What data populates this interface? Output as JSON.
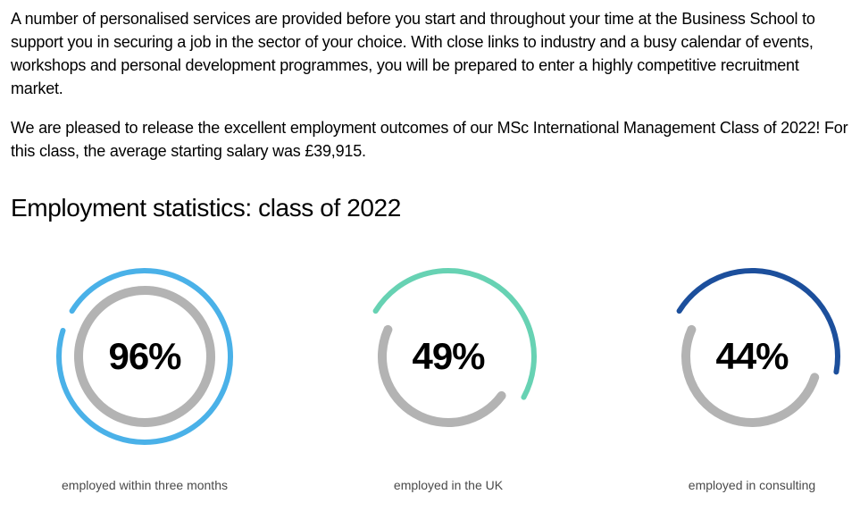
{
  "intro": {
    "p1": "A number of personalised services are provided before you start and throughout your time at the Business School to support you in securing a job in the sector of your choice. With close links to industry and a busy calendar of events, workshops and personal development programmes, you will be prepared to enter a highly competitive recruitment market.",
    "p2": "We are pleased to release the excellent employment outcomes of our MSc International Management Class of 2022! For this class, the average starting salary was £39,915."
  },
  "section_title": "Employment statistics: class of 2022",
  "chart": {
    "type": "donut",
    "background_color": "#ffffff",
    "track_color": "#b3b3b3",
    "track_stroke": 10,
    "arc_stroke": 6,
    "start_angle_deg": -58,
    "gap_deg": 8,
    "inner_radius": 74,
    "outer_radius": 96,
    "svg_size": 220,
    "value_fontsize": 42,
    "value_fontweight": 700,
    "caption_fontsize": 14,
    "caption_color": "#4a4a4a",
    "items": [
      {
        "value": 96,
        "display": "96%",
        "color": "#4ab1e8",
        "caption": "employed within three months"
      },
      {
        "value": 49,
        "display": "49%",
        "color": "#67d2b3",
        "caption": "employed in the UK"
      },
      {
        "value": 44,
        "display": "44%",
        "color": "#1c4f9c",
        "caption": "employed in consulting"
      }
    ]
  }
}
